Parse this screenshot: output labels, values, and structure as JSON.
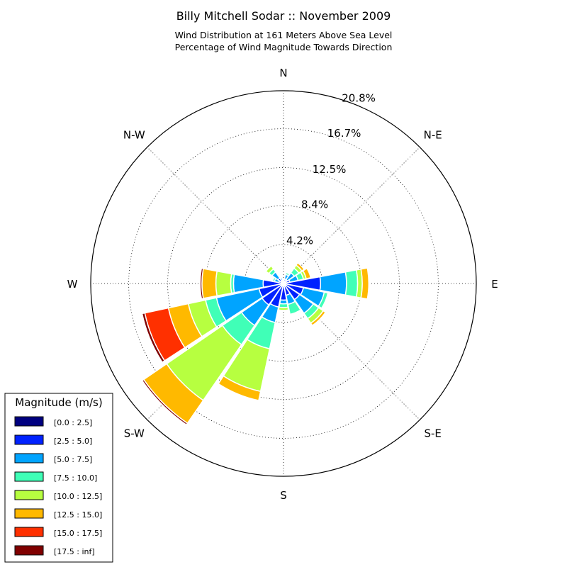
{
  "chart_data": {
    "type": "windrose",
    "title": "Billy Mitchell Sodar :: November 2009",
    "subtitle_line1": "Wind Distribution at 161 Meters Above Sea Level",
    "subtitle_line2": "Percentage of Wind Magnitude Towards Direction",
    "direction_labels": [
      "N",
      "N-E",
      "E",
      "S-E",
      "S",
      "S-W",
      "W",
      "N-W"
    ],
    "ring_labels": [
      "4.2%",
      "8.4%",
      "12.5%",
      "16.7%",
      "20.8%"
    ],
    "ring_values": [
      4.2,
      8.4,
      12.5,
      16.7,
      20.8
    ],
    "rmax": 20.8,
    "legend_title": "Magnitude (m/s)",
    "bins": [
      {
        "label": "[0.0 : 2.5]",
        "color": "#000080"
      },
      {
        "label": "[2.5 : 5.0]",
        "color": "#0022ff"
      },
      {
        "label": "[5.0 : 7.5]",
        "color": "#00a4ff"
      },
      {
        "label": "[7.5 : 10.0]",
        "color": "#40ffb7"
      },
      {
        "label": "[10.0 : 12.5]",
        "color": "#b7ff40"
      },
      {
        "label": "[12.5 : 15.0]",
        "color": "#ffb900"
      },
      {
        "label": "[15.0 : 17.5]",
        "color": "#ff3000"
      },
      {
        "label": "[17.5 : inf]",
        "color": "#800000"
      }
    ],
    "sectors": [
      {
        "dir": 0,
        "values": [
          0.1,
          0.2,
          0.1,
          0,
          0,
          0,
          0,
          0
        ]
      },
      {
        "dir": 22.5,
        "values": [
          0.1,
          0.4,
          0.5,
          0.2,
          0,
          0,
          0,
          0
        ]
      },
      {
        "dir": 45,
        "values": [
          0.1,
          0.4,
          0.9,
          0.6,
          0.4,
          0.3,
          0,
          0
        ]
      },
      {
        "dir": 67.5,
        "values": [
          0.1,
          0.6,
          0.9,
          0.6,
          0.3,
          0.5,
          0,
          0
        ]
      },
      {
        "dir": 90,
        "values": [
          0.2,
          3.8,
          2.8,
          1.2,
          0.5,
          0.7,
          0,
          0
        ]
      },
      {
        "dir": 112.5,
        "values": [
          0.2,
          2.0,
          2.3,
          0.4,
          0,
          0,
          0,
          0
        ]
      },
      {
        "dir": 135,
        "values": [
          0.2,
          1.9,
          1.8,
          0.7,
          0.6,
          0.3,
          0,
          0
        ]
      },
      {
        "dir": 157.5,
        "values": [
          0.2,
          1.1,
          1.0,
          1.1,
          0,
          0,
          0,
          0
        ]
      },
      {
        "dir": 180,
        "values": [
          0.2,
          1.6,
          0.4,
          0.4,
          0.3,
          0,
          0,
          0
        ]
      },
      {
        "dir": 202.5,
        "values": [
          0.2,
          2.4,
          1.7,
          2.9,
          4.7,
          1.0,
          0,
          0
        ]
      },
      {
        "dir": 225,
        "values": [
          0.2,
          2.6,
          2.7,
          2.5,
          7.3,
          3.0,
          0,
          0.2
        ]
      },
      {
        "dir": 247.5,
        "values": [
          0.2,
          2.5,
          4.7,
          1.2,
          1.9,
          2.2,
          2.6,
          0.3
        ]
      },
      {
        "dir": 270,
        "values": [
          0.2,
          2.0,
          3.2,
          0.3,
          1.6,
          1.5,
          0,
          0.2
        ]
      },
      {
        "dir": 292.5,
        "values": [
          0.1,
          0.4,
          0.5,
          0.2,
          0,
          0,
          0,
          0
        ]
      },
      {
        "dir": 315,
        "values": [
          0.1,
          0.6,
          0.8,
          0.4,
          0.4,
          0,
          0,
          0
        ]
      },
      {
        "dir": 337.5,
        "values": [
          0.1,
          0.3,
          0.2,
          0.1,
          0,
          0,
          0,
          0
        ]
      }
    ]
  }
}
